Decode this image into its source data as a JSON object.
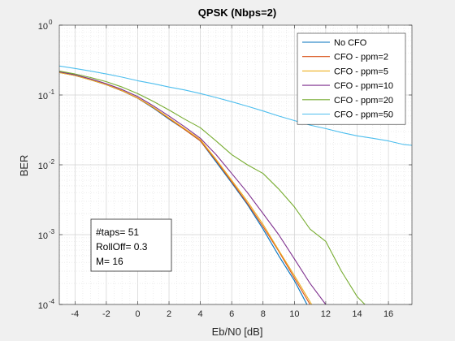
{
  "chart_data": {
    "type": "line",
    "title": "QPSK (Nbps=2)",
    "xlabel": "Eb/N0 [dB]",
    "ylabel": "BER",
    "xlim": [
      -5,
      17.5
    ],
    "ylim": [
      0.0001,
      1
    ],
    "yscale": "log",
    "grid": true,
    "minor_grid": true,
    "legend_position": "top-right",
    "x_ticks": [
      -4,
      -2,
      0,
      2,
      4,
      6,
      8,
      10,
      12,
      14,
      16
    ],
    "y_ticks": [
      {
        "value": 0.0001,
        "base": "10",
        "exp": "-4"
      },
      {
        "value": 0.001,
        "base": "10",
        "exp": "-3"
      },
      {
        "value": 0.01,
        "base": "10",
        "exp": "-2"
      },
      {
        "value": 0.1,
        "base": "10",
        "exp": "-1"
      },
      {
        "value": 1,
        "base": "10",
        "exp": "0"
      }
    ],
    "series": [
      {
        "name": "No CFO",
        "color": "#0072bd",
        "x": [
          -5,
          -4,
          -3,
          -2,
          -1,
          0,
          1,
          2,
          3,
          4,
          5,
          6,
          7,
          8,
          9,
          10,
          10.8
        ],
        "y": [
          0.21,
          0.19,
          0.165,
          0.14,
          0.115,
          0.09,
          0.065,
          0.045,
          0.032,
          0.022,
          0.011,
          0.0055,
          0.0027,
          0.0012,
          0.0005,
          0.00022,
          0.0001
        ]
      },
      {
        "name": "CFO - ppm=2",
        "color": "#d95319",
        "x": [
          -5,
          -4,
          -3,
          -2,
          -1,
          0,
          1,
          2,
          3,
          4,
          5,
          6,
          7,
          8,
          9,
          10,
          11
        ],
        "y": [
          0.21,
          0.19,
          0.165,
          0.14,
          0.115,
          0.09,
          0.066,
          0.046,
          0.032,
          0.022,
          0.0115,
          0.0057,
          0.0028,
          0.0013,
          0.00058,
          0.00024,
          0.0001
        ]
      },
      {
        "name": "CFO - ppm=5",
        "color": "#edb120",
        "x": [
          -5,
          -4,
          -3,
          -2,
          -1,
          0,
          1,
          2,
          3,
          4,
          5,
          6,
          7,
          8,
          9,
          10,
          11.1
        ],
        "y": [
          0.21,
          0.19,
          0.165,
          0.141,
          0.116,
          0.091,
          0.067,
          0.047,
          0.033,
          0.023,
          0.012,
          0.006,
          0.003,
          0.0014,
          0.0006,
          0.00026,
          0.0001
        ]
      },
      {
        "name": "CFO - ppm=10",
        "color": "#7e2f8e",
        "x": [
          -5,
          -4,
          -3,
          -2,
          -1,
          0,
          1,
          2,
          3,
          4,
          5,
          6,
          7,
          8,
          9,
          10,
          11,
          12
        ],
        "y": [
          0.215,
          0.195,
          0.17,
          0.145,
          0.12,
          0.095,
          0.07,
          0.05,
          0.035,
          0.024,
          0.014,
          0.0075,
          0.004,
          0.002,
          0.001,
          0.00045,
          0.0002,
          0.0001
        ]
      },
      {
        "name": "CFO - ppm=20",
        "color": "#77ac30",
        "x": [
          -5,
          -4,
          -3,
          -2,
          -1,
          0,
          1,
          2,
          3,
          4,
          5,
          6,
          7,
          8,
          9,
          10,
          11,
          12,
          13,
          14,
          14.5
        ],
        "y": [
          0.22,
          0.2,
          0.178,
          0.155,
          0.13,
          0.105,
          0.081,
          0.061,
          0.045,
          0.034,
          0.022,
          0.014,
          0.01,
          0.0075,
          0.0045,
          0.0025,
          0.0012,
          0.0008,
          0.0003,
          0.00013,
          0.0001
        ]
      },
      {
        "name": "CFO - ppm=50",
        "color": "#4dbeee",
        "x": [
          -5,
          -4,
          -3,
          -2,
          -1,
          0,
          1,
          2,
          3,
          4,
          5,
          6,
          7,
          8,
          9,
          10,
          11,
          12,
          13,
          14,
          15,
          16,
          17,
          17.5
        ],
        "y": [
          0.26,
          0.24,
          0.22,
          0.2,
          0.18,
          0.16,
          0.145,
          0.13,
          0.118,
          0.105,
          0.092,
          0.08,
          0.069,
          0.059,
          0.05,
          0.043,
          0.037,
          0.033,
          0.029,
          0.026,
          0.024,
          0.022,
          0.0195,
          0.019
        ]
      }
    ],
    "annotation": [
      "#taps= 51",
      "RollOff= 0.3",
      "M= 16"
    ]
  }
}
